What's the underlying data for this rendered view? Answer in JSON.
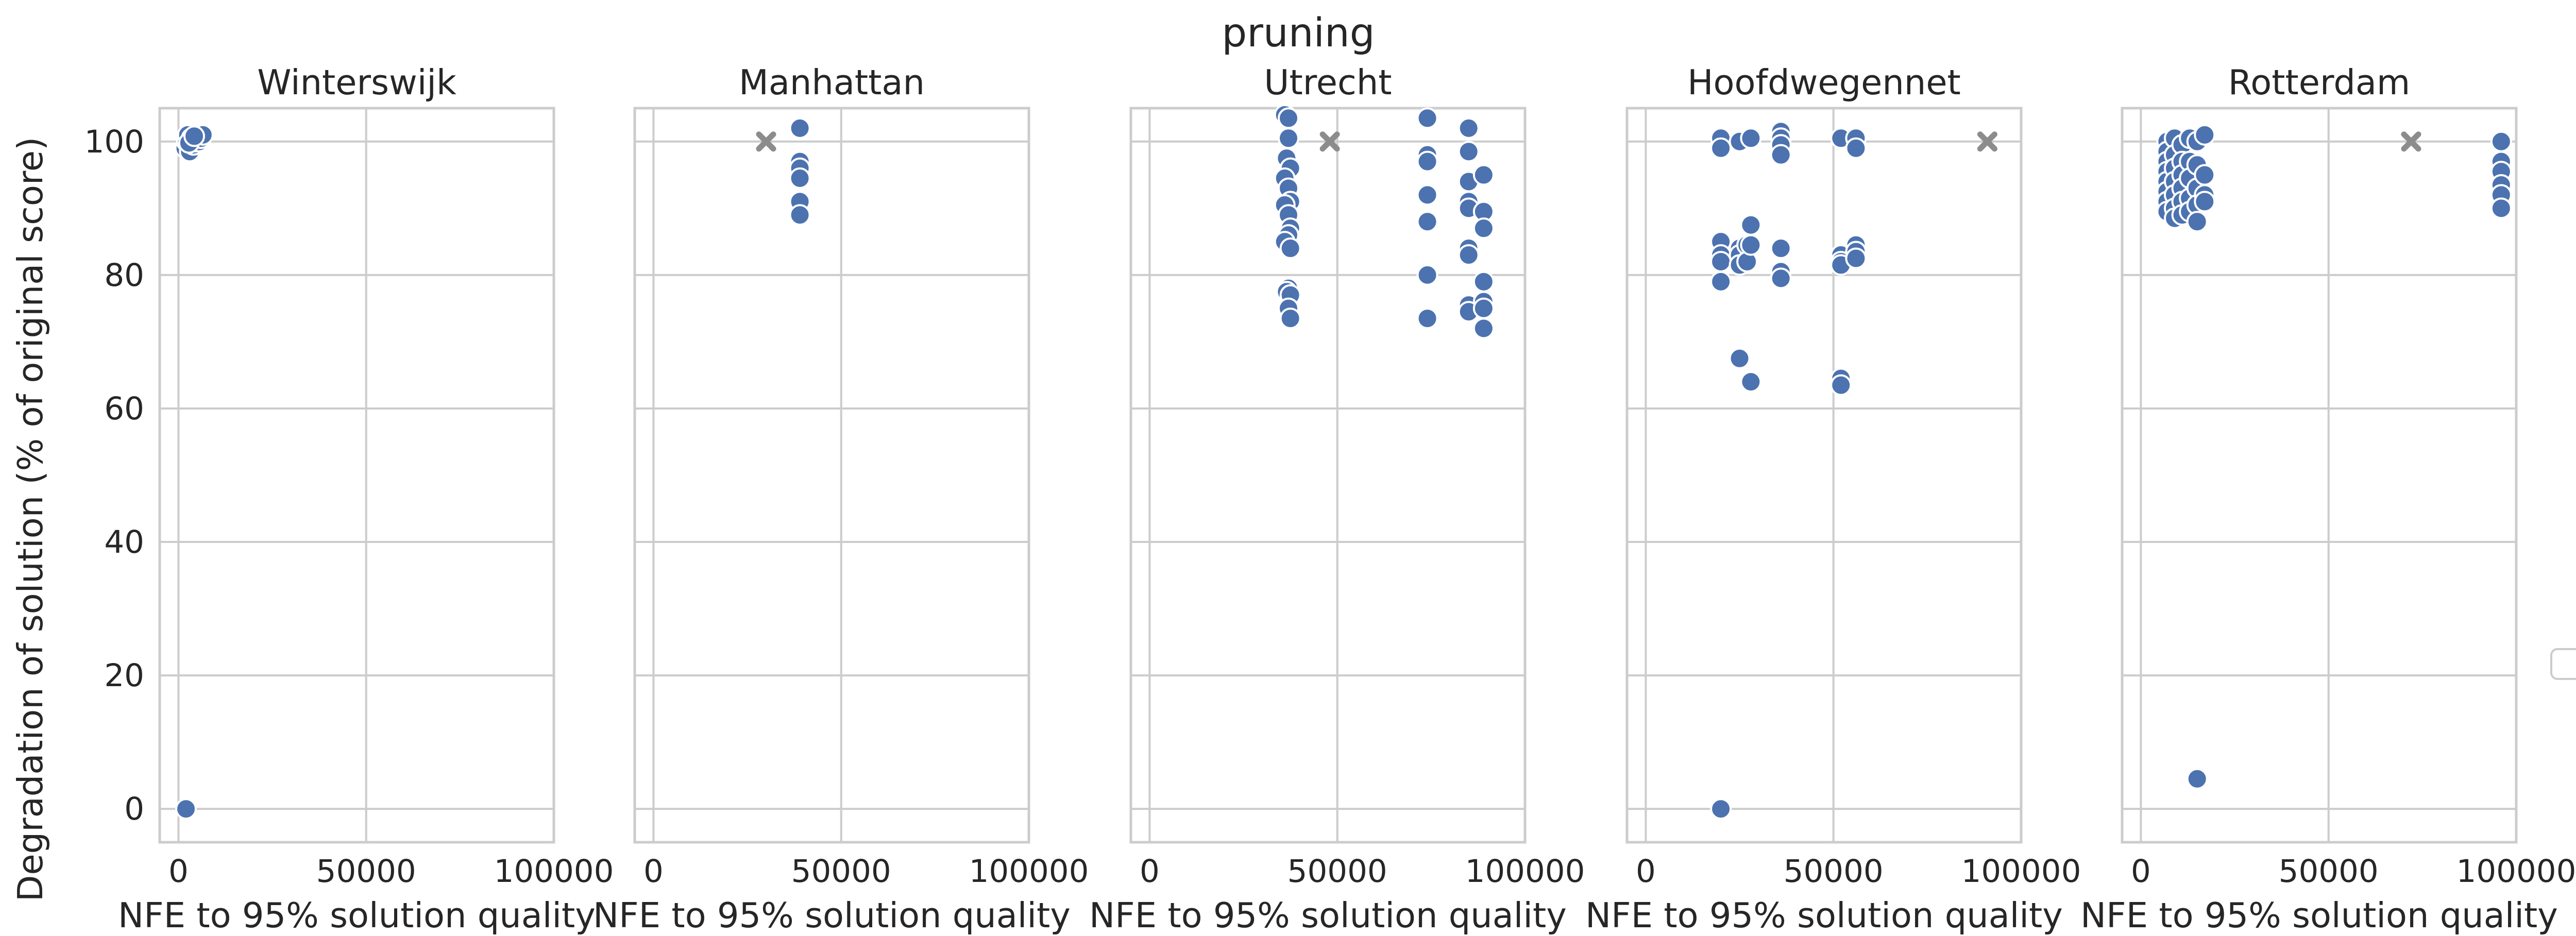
{
  "chart_data": {
    "type": "scatter",
    "title": "pruning",
    "ylabel": "Degradation of solution (% of original score)",
    "xlabel": "NFE to 95% solution quality",
    "xlim": [
      -5000,
      100000
    ],
    "ylim": [
      -5,
      105
    ],
    "xticks": [
      0,
      50000,
      100000
    ],
    "yticks": [
      0,
      20,
      40,
      60,
      80,
      100
    ],
    "grid": true,
    "sharey": true,
    "legend": "empty box at right edge",
    "colors": {
      "points": "#4c72b0",
      "reference": "#8c8c8c",
      "grid": "#cccccc"
    },
    "panels": [
      {
        "title": "Winterswijk",
        "reference": {
          "x": null,
          "y": 100
        },
        "points": [
          [
            2000,
            0
          ],
          [
            1800,
            99
          ],
          [
            2200,
            100
          ],
          [
            2500,
            101
          ],
          [
            3000,
            98.5
          ],
          [
            3500,
            100.5
          ],
          [
            4000,
            99.5
          ],
          [
            4500,
            100
          ],
          [
            5000,
            101
          ],
          [
            5500,
            100
          ],
          [
            6000,
            100.5
          ],
          [
            6500,
            101
          ],
          [
            2800,
            99.8
          ],
          [
            4200,
            100.8
          ]
        ]
      },
      {
        "title": "Manhattan",
        "reference": {
          "x": 30000,
          "y": 100
        },
        "points": [
          [
            39000,
            102
          ],
          [
            39000,
            97
          ],
          [
            39000,
            96
          ],
          [
            39000,
            94.5
          ],
          [
            39000,
            91
          ],
          [
            39000,
            89
          ]
        ]
      },
      {
        "title": "Utrecht",
        "reference": {
          "x": 48000,
          "y": 100
        },
        "points": [
          [
            36000,
            104
          ],
          [
            37000,
            103.5
          ],
          [
            37000,
            100.5
          ],
          [
            36500,
            97.5
          ],
          [
            37500,
            96
          ],
          [
            36000,
            94.5
          ],
          [
            37000,
            93
          ],
          [
            37500,
            91
          ],
          [
            36000,
            90.5
          ],
          [
            37000,
            89
          ],
          [
            37500,
            87
          ],
          [
            37000,
            86
          ],
          [
            36000,
            85
          ],
          [
            37500,
            84
          ],
          [
            37000,
            78
          ],
          [
            36500,
            77.5
          ],
          [
            37500,
            77
          ],
          [
            37000,
            75
          ],
          [
            37500,
            73.5
          ],
          [
            74000,
            103.5
          ],
          [
            74000,
            98
          ],
          [
            74000,
            97
          ],
          [
            74000,
            92
          ],
          [
            74000,
            88
          ],
          [
            74000,
            80
          ],
          [
            74000,
            73.5
          ],
          [
            85000,
            102
          ],
          [
            85000,
            98.5
          ],
          [
            85000,
            94
          ],
          [
            85000,
            91
          ],
          [
            85000,
            90
          ],
          [
            85000,
            84
          ],
          [
            85000,
            83
          ],
          [
            85000,
            75.5
          ],
          [
            85000,
            74.5
          ],
          [
            89000,
            95
          ],
          [
            89000,
            89.5
          ],
          [
            89000,
            87
          ],
          [
            89000,
            79
          ],
          [
            89000,
            76
          ],
          [
            89000,
            75
          ],
          [
            89000,
            72
          ]
        ]
      },
      {
        "title": "Hoofdwegennet",
        "reference": {
          "x": 91000,
          "y": 100
        },
        "points": [
          [
            20000,
            100.5
          ],
          [
            20000,
            99
          ],
          [
            20000,
            85
          ],
          [
            20000,
            83
          ],
          [
            20000,
            82
          ],
          [
            20000,
            79
          ],
          [
            20000,
            0
          ],
          [
            25000,
            100
          ],
          [
            25000,
            84
          ],
          [
            25000,
            83
          ],
          [
            25000,
            81.5
          ],
          [
            25000,
            67.5
          ],
          [
            27000,
            84.5
          ],
          [
            27000,
            82
          ],
          [
            28000,
            100.5
          ],
          [
            28000,
            87.5
          ],
          [
            28000,
            84.5
          ],
          [
            28000,
            64
          ],
          [
            36000,
            101.5
          ],
          [
            36000,
            100.5
          ],
          [
            36000,
            99.5
          ],
          [
            36000,
            98
          ],
          [
            36000,
            84
          ],
          [
            36000,
            80.5
          ],
          [
            36000,
            79.5
          ],
          [
            52000,
            100.5
          ],
          [
            52000,
            83
          ],
          [
            52000,
            82
          ],
          [
            52000,
            81.5
          ],
          [
            52000,
            64.5
          ],
          [
            52000,
            63.5
          ],
          [
            56000,
            100.5
          ],
          [
            56000,
            99
          ],
          [
            56000,
            84.5
          ],
          [
            56000,
            83.5
          ],
          [
            56000,
            82.5
          ]
        ]
      },
      {
        "title": "Rotterdam",
        "reference": {
          "x": 72000,
          "y": 100
        },
        "points": [
          [
            7000,
            100
          ],
          [
            7000,
            98.5
          ],
          [
            7000,
            97
          ],
          [
            7000,
            95.5
          ],
          [
            7000,
            94
          ],
          [
            7000,
            92.5
          ],
          [
            7000,
            91
          ],
          [
            7000,
            89.5
          ],
          [
            9000,
            100.5
          ],
          [
            9000,
            98
          ],
          [
            9000,
            96
          ],
          [
            9000,
            94
          ],
          [
            9000,
            92
          ],
          [
            9000,
            90
          ],
          [
            9000,
            88.5
          ],
          [
            11000,
            99.5
          ],
          [
            11000,
            97
          ],
          [
            11000,
            95
          ],
          [
            11000,
            93
          ],
          [
            11000,
            91
          ],
          [
            11000,
            89
          ],
          [
            13000,
            100.5
          ],
          [
            13000,
            97
          ],
          [
            13000,
            94.5
          ],
          [
            13000,
            91.5
          ],
          [
            13000,
            89.5
          ],
          [
            15000,
            100
          ],
          [
            15000,
            96.5
          ],
          [
            15000,
            93
          ],
          [
            15000,
            90.5
          ],
          [
            15000,
            88
          ],
          [
            15000,
            4.5
          ],
          [
            17000,
            101
          ],
          [
            17000,
            95
          ],
          [
            17000,
            92
          ],
          [
            17000,
            91
          ],
          [
            96000,
            100
          ],
          [
            96000,
            97
          ],
          [
            96000,
            95.5
          ],
          [
            96000,
            93.5
          ],
          [
            96000,
            92
          ],
          [
            96000,
            90
          ]
        ]
      }
    ]
  }
}
